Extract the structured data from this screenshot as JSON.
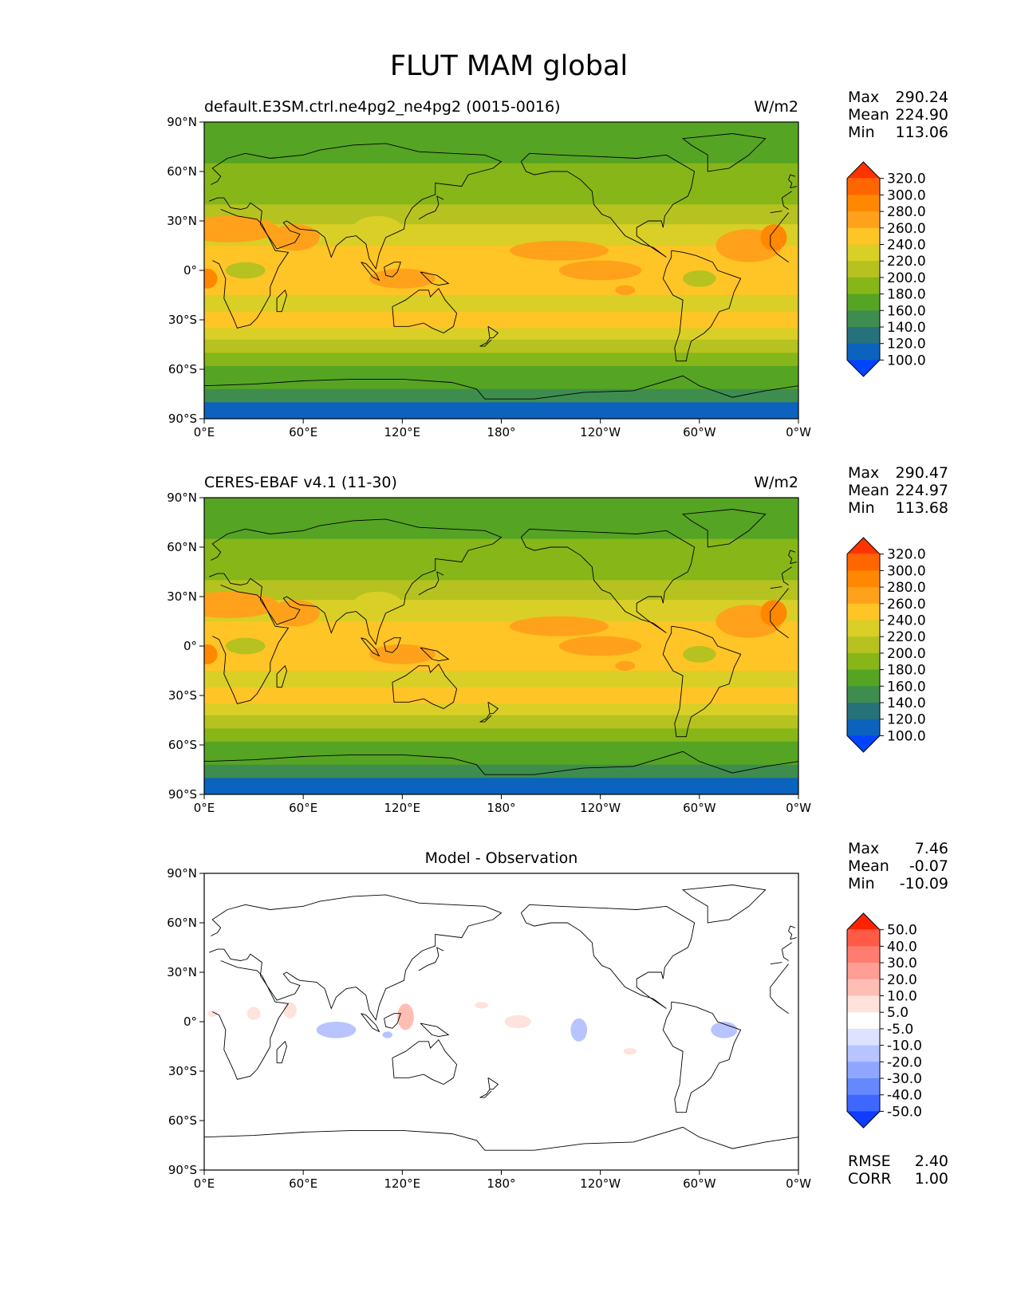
{
  "figure_title": "FLUT MAM global",
  "chart_data": [
    {
      "type": "heatmap",
      "subtitle": "default.E3SM.ctrl.ne4pg2_ne4pg2 (0015-0016)",
      "units": "W/m2",
      "x_tick_labels": [
        "0°E",
        "60°E",
        "120°E",
        "180°",
        "120°W",
        "60°W",
        "0°W"
      ],
      "y_tick_labels": [
        "90°N",
        "60°N",
        "30°N",
        "0°",
        "30°S",
        "60°S",
        "90°S"
      ],
      "xlim": [
        0,
        360
      ],
      "ylim": [
        -90,
        90
      ],
      "stats": [
        {
          "label": "Max",
          "value": "290.24"
        },
        {
          "label": "Mean",
          "value": "224.90"
        },
        {
          "label": "Min",
          "value": "113.06"
        }
      ],
      "colorbar": {
        "tick_labels": [
          "320.0",
          "300.0",
          "280.0",
          "260.0",
          "240.0",
          "220.0",
          "200.0",
          "180.0",
          "160.0",
          "140.0",
          "120.0",
          "100.0"
        ],
        "colors": [
          "#ff3300",
          "#ff6600",
          "#ff8800",
          "#ffa11a",
          "#ffc425",
          "#d9cf26",
          "#b5c21f",
          "#86b617",
          "#55a424",
          "#3e8d4f",
          "#27727a",
          "#0b63be",
          "#0044ff"
        ],
        "extend": "both"
      },
      "field": "model"
    },
    {
      "type": "heatmap",
      "subtitle": "CERES-EBAF v4.1 (11-30)",
      "units": "W/m2",
      "x_tick_labels": [
        "0°E",
        "60°E",
        "120°E",
        "180°",
        "120°W",
        "60°W",
        "0°W"
      ],
      "y_tick_labels": [
        "90°N",
        "60°N",
        "30°N",
        "0°",
        "30°S",
        "60°S",
        "90°S"
      ],
      "xlim": [
        0,
        360
      ],
      "ylim": [
        -90,
        90
      ],
      "stats": [
        {
          "label": "Max",
          "value": "290.47"
        },
        {
          "label": "Mean",
          "value": "224.97"
        },
        {
          "label": "Min",
          "value": "113.68"
        }
      ],
      "colorbar": {
        "tick_labels": [
          "320.0",
          "300.0",
          "280.0",
          "260.0",
          "240.0",
          "220.0",
          "200.0",
          "180.0",
          "160.0",
          "140.0",
          "120.0",
          "100.0"
        ],
        "colors": [
          "#ff3300",
          "#ff6600",
          "#ff8800",
          "#ffa11a",
          "#ffc425",
          "#d9cf26",
          "#b5c21f",
          "#86b617",
          "#55a424",
          "#3e8d4f",
          "#27727a",
          "#0b63be",
          "#0044ff"
        ],
        "extend": "both"
      },
      "field": "obs"
    },
    {
      "type": "heatmap",
      "subtitle": "Model - Observation",
      "units": "",
      "x_tick_labels": [
        "0°E",
        "60°E",
        "120°E",
        "180°",
        "120°W",
        "60°W",
        "0°W"
      ],
      "y_tick_labels": [
        "90°N",
        "60°N",
        "30°N",
        "0°",
        "30°S",
        "60°S",
        "90°S"
      ],
      "xlim": [
        0,
        360
      ],
      "ylim": [
        -90,
        90
      ],
      "stats": [
        {
          "label": "Max",
          "value": "7.46"
        },
        {
          "label": "Mean",
          "value": "-0.07"
        },
        {
          "label": "Min",
          "value": "-10.09"
        }
      ],
      "extra_stats": [
        {
          "label": "RMSE",
          "value": "2.40"
        },
        {
          "label": "CORR",
          "value": "1.00"
        }
      ],
      "colorbar": {
        "tick_labels": [
          "50.0",
          "40.0",
          "30.0",
          "20.0",
          "10.0",
          "5.0",
          "-5.0",
          "-10.0",
          "-20.0",
          "-30.0",
          "-40.0",
          "-50.0"
        ],
        "colors": [
          "#ff2200",
          "#ff5a46",
          "#ff7d70",
          "#ff9e94",
          "#ffbeb4",
          "#ffe2dc",
          "#ffffff",
          "#dce2ff",
          "#b8c4ff",
          "#8ea6ff",
          "#6688ff",
          "#3f66ff",
          "#0f3cff"
        ],
        "extend": "both"
      },
      "field": "diff"
    }
  ]
}
